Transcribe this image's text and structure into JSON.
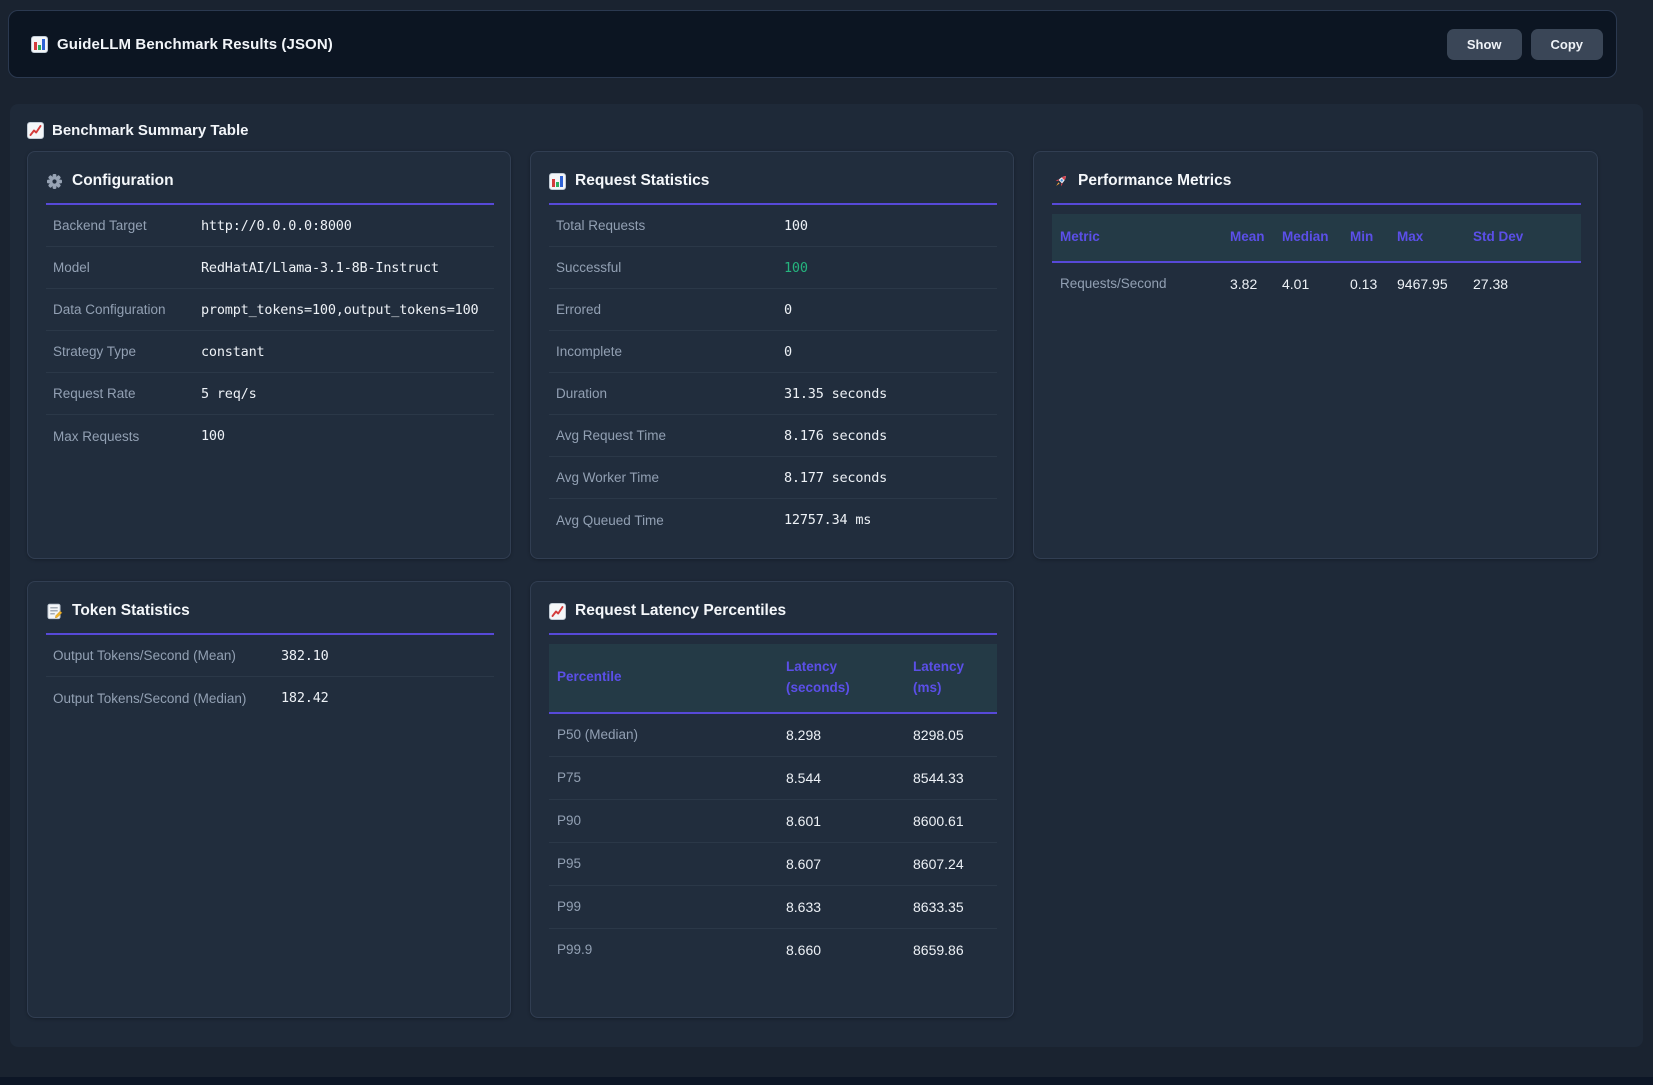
{
  "header": {
    "icon": "bar-chart-icon",
    "title": "GuideLLM Benchmark Results (JSON)",
    "buttons": {
      "show": "Show",
      "copy": "Copy"
    }
  },
  "section": {
    "icon": "chart-increasing-icon",
    "title": "Benchmark Summary Table"
  },
  "cards": {
    "configuration": {
      "icon": "gear-icon",
      "title": "Configuration",
      "rows": [
        {
          "label": "Backend Target",
          "value": "http://0.0.0.0:8000"
        },
        {
          "label": "Model",
          "value": "RedHatAI/Llama-3.1-8B-Instruct"
        },
        {
          "label": "Data Configuration",
          "value": "prompt_tokens=100,output_tokens=100"
        },
        {
          "label": "Strategy Type",
          "value": "constant"
        },
        {
          "label": "Request Rate",
          "value": "5 req/s"
        },
        {
          "label": "Max Requests",
          "value": "100"
        }
      ]
    },
    "request_statistics": {
      "icon": "bar-chart-icon",
      "title": "Request Statistics",
      "rows": [
        {
          "label": "Total Requests",
          "value": "100"
        },
        {
          "label": "Successful",
          "value": "100",
          "color": "green"
        },
        {
          "label": "Errored",
          "value": "0"
        },
        {
          "label": "Incomplete",
          "value": "0"
        },
        {
          "label": "Duration",
          "value": "31.35 seconds"
        },
        {
          "label": "Avg Request Time",
          "value": "8.176 seconds"
        },
        {
          "label": "Avg Worker Time",
          "value": "8.177 seconds"
        },
        {
          "label": "Avg Queued Time",
          "value": "12757.34 ms"
        }
      ]
    },
    "performance_metrics": {
      "icon": "rocket-icon",
      "title": "Performance Metrics",
      "table": {
        "headers": [
          "Metric",
          "Mean",
          "Median",
          "Min",
          "Max",
          "Std Dev"
        ],
        "rows": [
          [
            "Requests/Second",
            "3.82",
            "4.01",
            "0.13",
            "9467.95",
            "27.38"
          ]
        ]
      }
    },
    "token_statistics": {
      "icon": "memo-icon",
      "title": "Token Statistics",
      "rows": [
        {
          "label": "Output Tokens/Second (Mean)",
          "value": "382.10"
        },
        {
          "label": "Output Tokens/Second (Median)",
          "value": "182.42"
        }
      ]
    },
    "latency_percentiles": {
      "icon": "chart-increasing-icon",
      "title": "Request Latency Percentiles",
      "table": {
        "headers": [
          "Percentile",
          "Latency (seconds)",
          "Latency (ms)"
        ],
        "rows": [
          [
            "P50 (Median)",
            "8.298",
            "8298.05"
          ],
          [
            "P75",
            "8.544",
            "8544.33"
          ],
          [
            "P90",
            "8.601",
            "8600.61"
          ],
          [
            "P95",
            "8.607",
            "8607.24"
          ],
          [
            "P99",
            "8.633",
            "8633.35"
          ],
          [
            "P99.9",
            "8.660",
            "8659.86"
          ]
        ]
      }
    }
  },
  "colors": {
    "accent": "#5749d8",
    "th_text": "#5b4fe8",
    "success": "#25b47e"
  }
}
